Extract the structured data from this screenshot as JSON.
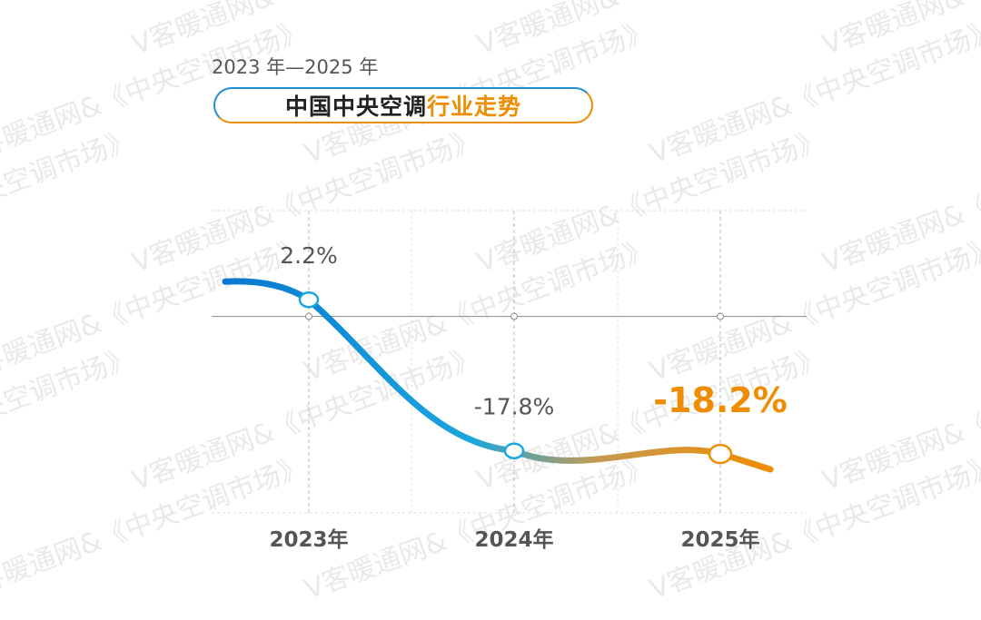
{
  "header": {
    "subtitle": "2023 年—2025 年",
    "title_main": "中国中央空调",
    "title_accent": "行业走势"
  },
  "watermark": {
    "text": "V客暖通网&《中央空调市场》"
  },
  "colors": {
    "line_start": "#0a78d2",
    "line_mid": "#1aa6de",
    "line_end": "#f08c00",
    "highlight_label": "#f08c00",
    "label": "#555555"
  },
  "chart_data": {
    "type": "line",
    "categories": [
      "2023年",
      "2024年",
      "2025年"
    ],
    "series": [
      {
        "values": [
          2.2,
          -17.8,
          -18.2
        ],
        "labels": [
          "2.2%",
          "-17.8%",
          "-18.2%"
        ]
      }
    ],
    "ylim": [
      -26,
      14
    ],
    "baseline": 0,
    "grid": true,
    "xlabel": "",
    "ylabel": ""
  }
}
